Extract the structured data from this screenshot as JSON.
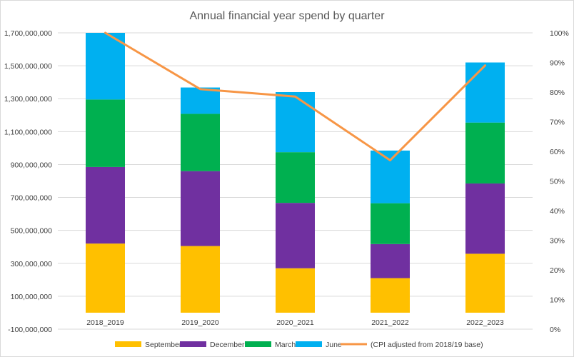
{
  "chart_data": {
    "type": "bar",
    "stacked": true,
    "title": "Annual financial year spend by quarter",
    "xlabel": "",
    "ylabel": "",
    "categories": [
      "2018_2019",
      "2019_2020",
      "2020_2021",
      "2021_2022",
      "2022_2023"
    ],
    "ylim": [
      -100000000,
      1700000000
    ],
    "y_ticks": [
      "-100,000,000",
      "100,000,000",
      "300,000,000",
      "500,000,000",
      "700,000,000",
      "900,000,000",
      "1,100,000,000",
      "1,300,000,000",
      "1,500,000,000",
      "1,700,000,000"
    ],
    "y2lim": [
      0,
      100
    ],
    "y2_ticks": [
      "0%",
      "10%",
      "20%",
      "30%",
      "40%",
      "50%",
      "60%",
      "70%",
      "80%",
      "90%",
      "100%"
    ],
    "grid": true,
    "legend_position": "bottom",
    "series": [
      {
        "name": "September",
        "kind": "bar",
        "color": "#FFC000",
        "values": [
          420000000,
          405000000,
          270000000,
          210000000,
          358000000
        ]
      },
      {
        "name": "December",
        "kind": "bar",
        "color": "#7030A0",
        "values": [
          465000000,
          455000000,
          397000000,
          207000000,
          427000000
        ]
      },
      {
        "name": "March",
        "kind": "bar",
        "color": "#00B050",
        "values": [
          410000000,
          348000000,
          308000000,
          248000000,
          370000000
        ]
      },
      {
        "name": "June",
        "kind": "bar",
        "color": "#00B0F0",
        "values": [
          405000000,
          160000000,
          365000000,
          320000000,
          365000000
        ]
      },
      {
        "name": "(CPI adjusted from 2018/19 base)",
        "kind": "line",
        "axis": "right",
        "color": "#F79646",
        "values": [
          100,
          81,
          78.5,
          57,
          89
        ]
      }
    ]
  }
}
